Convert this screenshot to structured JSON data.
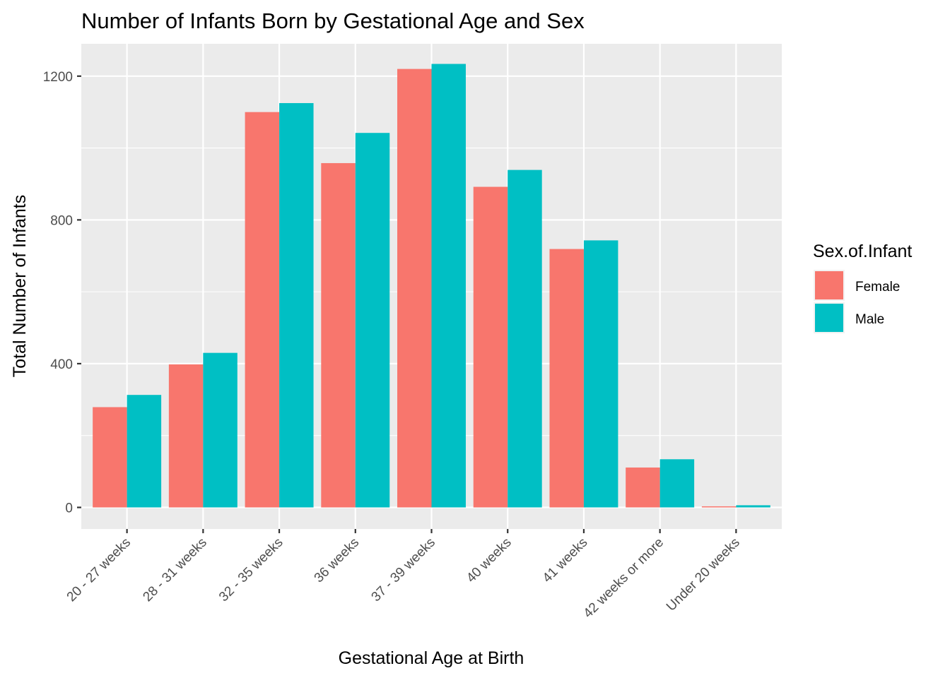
{
  "chart_data": {
    "type": "bar",
    "title": "Number of Infants Born by Gestational Age and Sex",
    "xlabel": "Gestational Age at Birth",
    "ylabel": "Total Number of Infants",
    "categories": [
      "20 - 27 weeks",
      "28 - 31 weeks",
      "32 - 35 weeks",
      "36 weeks",
      "37 - 39 weeks",
      "40 weeks",
      "41 weeks",
      "42 weeks or more",
      "Under 20 weeks"
    ],
    "series": [
      {
        "name": "Female",
        "color": "#F8766D",
        "values": [
          279,
          398,
          1100,
          958,
          1220,
          892,
          719,
          111,
          3
        ]
      },
      {
        "name": "Male",
        "color": "#00BFC4",
        "values": [
          313,
          430,
          1125,
          1042,
          1234,
          939,
          743,
          134,
          6
        ]
      }
    ],
    "ylim": [
      -60,
      1290
    ],
    "yticks": [
      0,
      400,
      800,
      1200
    ],
    "grid": true,
    "legend": {
      "title": "Sex.of.Infant",
      "position": "right"
    }
  }
}
